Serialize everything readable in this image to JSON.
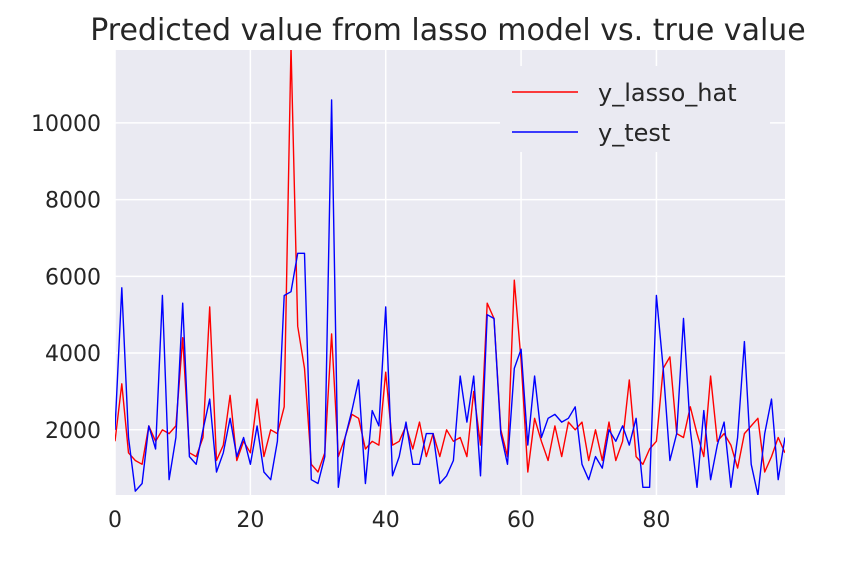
{
  "chart_data": {
    "type": "line",
    "title": "Predicted value from lasso model vs. true value",
    "xlabel": "",
    "ylabel": "",
    "xlim": [
      0,
      99
    ],
    "ylim": [
      300,
      11900
    ],
    "xticks": [
      0,
      20,
      40,
      60,
      80
    ],
    "yticks": [
      2000,
      4000,
      6000,
      8000,
      10000
    ],
    "grid": true,
    "legend_position": "top-right",
    "series": [
      {
        "name": "y_lasso_hat",
        "color": "#ff0000",
        "x": [
          0,
          1,
          2,
          3,
          4,
          5,
          6,
          7,
          8,
          9,
          10,
          11,
          12,
          13,
          14,
          15,
          16,
          17,
          18,
          19,
          20,
          21,
          22,
          23,
          24,
          25,
          26,
          27,
          28,
          29,
          30,
          31,
          32,
          33,
          34,
          35,
          36,
          37,
          38,
          39,
          40,
          41,
          42,
          43,
          44,
          45,
          46,
          47,
          48,
          49,
          50,
          51,
          52,
          53,
          54,
          55,
          56,
          57,
          58,
          59,
          60,
          61,
          62,
          63,
          64,
          65,
          66,
          67,
          68,
          69,
          70,
          71,
          72,
          73,
          74,
          75,
          76,
          77,
          78,
          79,
          80,
          81,
          82,
          83,
          84,
          85,
          86,
          87,
          88,
          89,
          90,
          91,
          92,
          93,
          94,
          95,
          96,
          97,
          98,
          99
        ],
        "values": [
          1700,
          3200,
          1400,
          1200,
          1100,
          2100,
          1700,
          2000,
          1900,
          2100,
          4400,
          1400,
          1300,
          1800,
          5200,
          1200,
          1600,
          2900,
          1200,
          1700,
          1400,
          2800,
          1300,
          2000,
          1900,
          2600,
          12000,
          4700,
          3600,
          1100,
          900,
          1400,
          4500,
          1300,
          1800,
          2400,
          2300,
          1500,
          1700,
          1600,
          3500,
          1600,
          1700,
          2100,
          1500,
          2200,
          1300,
          1900,
          1300,
          2000,
          1700,
          1800,
          1300,
          3000,
          1600,
          5300,
          4900,
          2000,
          1300,
          5900,
          3800,
          900,
          2300,
          1700,
          1200,
          2100,
          1300,
          2200,
          2000,
          2200,
          1200,
          2000,
          1200,
          2200,
          1200,
          1700,
          3300,
          1300,
          1100,
          1500,
          1700,
          3600,
          3900,
          1900,
          1800,
          2600,
          1900,
          1300,
          3400,
          1700,
          1900,
          1600,
          1000,
          1900,
          2100,
          2300,
          900,
          1300,
          1800,
          1400
        ]
      },
      {
        "name": "y_test",
        "color": "#0000ff",
        "x": [
          0,
          1,
          2,
          3,
          4,
          5,
          6,
          7,
          8,
          9,
          10,
          11,
          12,
          13,
          14,
          15,
          16,
          17,
          18,
          19,
          20,
          21,
          22,
          23,
          24,
          25,
          26,
          27,
          28,
          29,
          30,
          31,
          32,
          33,
          34,
          35,
          36,
          37,
          38,
          39,
          40,
          41,
          42,
          43,
          44,
          45,
          46,
          47,
          48,
          49,
          50,
          51,
          52,
          53,
          54,
          55,
          56,
          57,
          58,
          59,
          60,
          61,
          62,
          63,
          64,
          65,
          66,
          67,
          68,
          69,
          70,
          71,
          72,
          73,
          74,
          75,
          76,
          77,
          78,
          79,
          80,
          81,
          82,
          83,
          84,
          85,
          86,
          87,
          88,
          89,
          90,
          91,
          92,
          93,
          94,
          95,
          96,
          97,
          98,
          99
        ],
        "values": [
          2000,
          5700,
          1800,
          400,
          600,
          2100,
          1500,
          5500,
          700,
          1800,
          5300,
          1300,
          1100,
          2000,
          2800,
          900,
          1400,
          2300,
          1300,
          1800,
          1100,
          2100,
          900,
          700,
          1700,
          5500,
          5600,
          6600,
          6600,
          700,
          600,
          1300,
          10600,
          500,
          1800,
          2500,
          3300,
          600,
          2500,
          2100,
          5200,
          800,
          1300,
          2200,
          1100,
          1100,
          1900,
          1900,
          600,
          800,
          1200,
          3400,
          2200,
          3400,
          800,
          5000,
          4900,
          1900,
          1100,
          3600,
          4100,
          1600,
          3400,
          1800,
          2300,
          2400,
          2200,
          2300,
          2600,
          1100,
          700,
          1300,
          1000,
          2000,
          1700,
          2100,
          1600,
          2300,
          500,
          500,
          5500,
          3600,
          1200,
          1900,
          4900,
          2000,
          500,
          2500,
          700,
          1600,
          2200,
          500,
          1800,
          4300,
          1100,
          300,
          1900,
          2800,
          700,
          1800
        ]
      }
    ]
  }
}
